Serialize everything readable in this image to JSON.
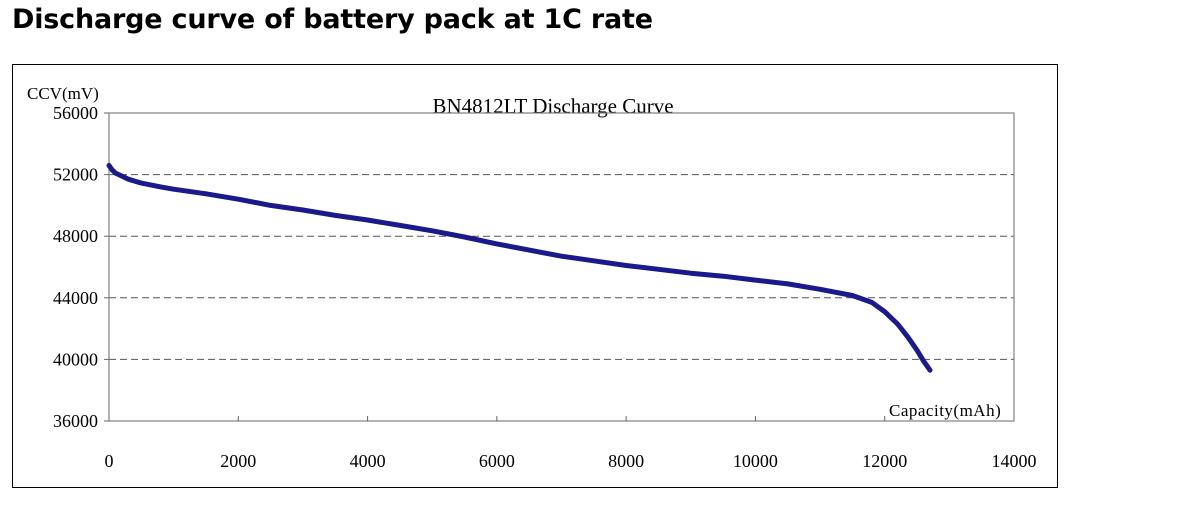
{
  "page_title": "Discharge curve of battery pack at 1C rate",
  "chart_data": {
    "type": "line",
    "title": "BN4812LT Discharge Curve",
    "xlabel": "Capacity(mAh)",
    "ylabel": "CCV(mV)",
    "xlim": [
      0,
      14000
    ],
    "ylim": [
      36000,
      56000
    ],
    "xticks": [
      "0",
      "2000",
      "4000",
      "6000",
      "8000",
      "10000",
      "12000",
      "14000"
    ],
    "yticks": [
      "36000",
      "40000",
      "44000",
      "48000",
      "52000",
      "56000"
    ],
    "grid": "horizontal dashed",
    "series": [
      {
        "color": "#1a1a8c",
        "x": [
          0,
          50,
          100,
          200,
          300,
          500,
          800,
          1000,
          1500,
          2000,
          2500,
          3000,
          3500,
          4000,
          4500,
          5000,
          5500,
          6000,
          6500,
          7000,
          7500,
          8000,
          8500,
          9000,
          9500,
          10000,
          10500,
          11000,
          11500,
          11800,
          12000,
          12200,
          12350,
          12500,
          12600,
          12700
        ],
        "y": [
          52600,
          52300,
          52100,
          51900,
          51700,
          51450,
          51200,
          51050,
          50750,
          50400,
          50000,
          49700,
          49350,
          49050,
          48700,
          48350,
          47950,
          47500,
          47100,
          46700,
          46400,
          46100,
          45850,
          45600,
          45400,
          45150,
          44900,
          44550,
          44150,
          43700,
          43100,
          42300,
          41500,
          40600,
          39900,
          39300
        ]
      }
    ]
  }
}
